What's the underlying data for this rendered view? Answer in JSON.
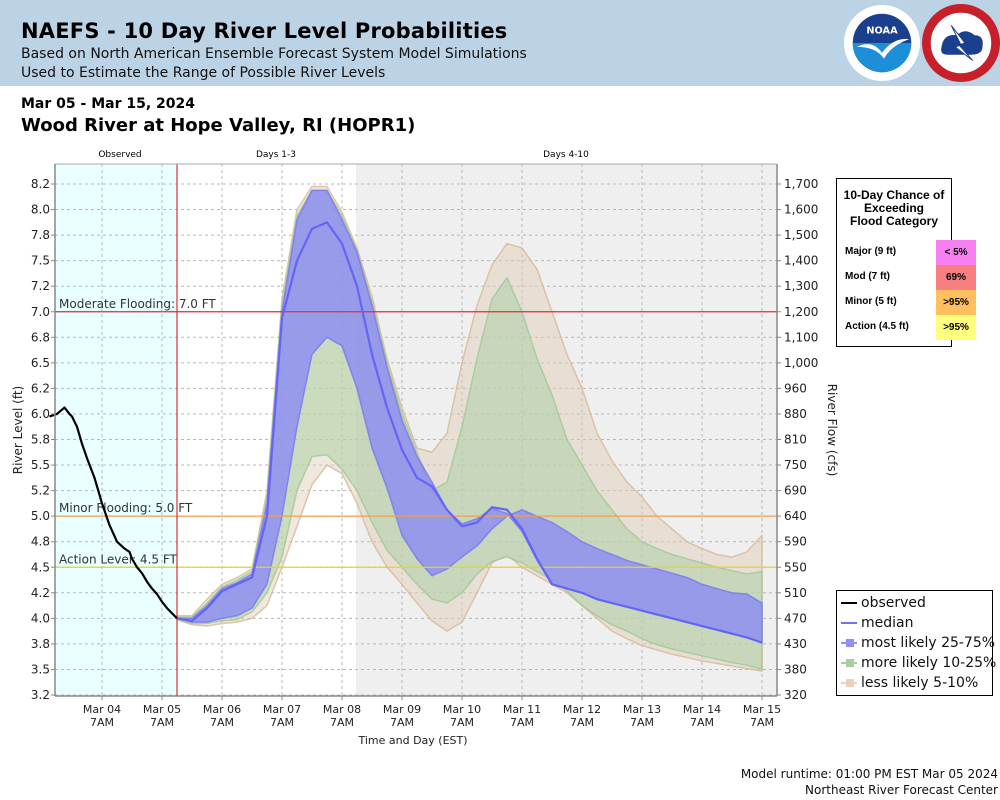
{
  "header": {
    "title": "NAEFS - 10 Day River Level Probabilities",
    "subtitle1": "Based on North American Ensemble Forecast System Model Simulations",
    "subtitle2": "Used to Estimate the Range of Possible River Levels",
    "logos": [
      "noaa-logo",
      "nws-logo"
    ],
    "noaa_text": "NOAA"
  },
  "date_range": "Mar 05 - Mar 15, 2024",
  "station": "Wood River at Hope Valley, RI (HOPR1)",
  "flood_table": {
    "title_lines": [
      "10-Day Chance of",
      "Exceeding",
      "Flood Category"
    ],
    "rows": [
      {
        "label": "Major (9 ft)",
        "value": "< 5%",
        "color": "#f77ff2"
      },
      {
        "label": "Mod (7 ft)",
        "value": "69%",
        "color": "#f77f7f"
      },
      {
        "label": "Minor (5 ft)",
        "value": ">95%",
        "color": "#ffbf5f"
      },
      {
        "label": "Action (4.5 ft)",
        "value": ">95%",
        "color": "#ffff7f"
      }
    ]
  },
  "legend": [
    {
      "label": "observed",
      "kind": "line",
      "color": "#000000"
    },
    {
      "label": "median",
      "kind": "line",
      "color": "#6f6ff7"
    },
    {
      "label": "most likely 25-75%",
      "kind": "band",
      "color": "#8f8ff7"
    },
    {
      "label": "more likely 10-25%",
      "kind": "band",
      "color": "#a9cfa0"
    },
    {
      "label": "less likely 5-10%",
      "kind": "band",
      "color": "#e8d2b8"
    }
  ],
  "footer": {
    "runtime": "Model runtime: 01:00 PM EST Mar 05 2024",
    "center": "Northeast River Forecast Center"
  },
  "chart_data": {
    "type": "area",
    "title": "Wood River at Hope Valley, RI (HOPR1)",
    "xlabel": "Time and Day (EST)",
    "ylabel": "River Level (ft)",
    "ylabel_right": "River Flow (cfs)",
    "grid": true,
    "legend_position": "bottom-right",
    "period_labels": [
      "Observed",
      "Days 1-3",
      "Days 4-10"
    ],
    "x_ticks": [
      {
        "day": "Mar 04",
        "time": "7AM"
      },
      {
        "day": "Mar 05",
        "time": "7AM"
      },
      {
        "day": "Mar 06",
        "time": "7AM"
      },
      {
        "day": "Mar 07",
        "time": "7AM"
      },
      {
        "day": "Mar 08",
        "time": "7AM"
      },
      {
        "day": "Mar 09",
        "time": "7AM"
      },
      {
        "day": "Mar 10",
        "time": "7AM"
      },
      {
        "day": "Mar 11",
        "time": "7AM"
      },
      {
        "day": "Mar 12",
        "time": "7AM"
      },
      {
        "day": "Mar 13",
        "time": "7AM"
      },
      {
        "day": "Mar 14",
        "time": "7AM"
      },
      {
        "day": "Mar 15",
        "time": "7AM"
      }
    ],
    "y_ticks_left": [
      "8.2",
      "8.0",
      "7.8",
      "7.5",
      "7.2",
      "7.0",
      "6.8",
      "6.5",
      "6.2",
      "6.0",
      "5.8",
      "5.5",
      "5.2",
      "5.0",
      "4.8",
      "4.5",
      "4.2",
      "4.0",
      "3.8",
      "3.5",
      "3.2"
    ],
    "y_ticks_right": [
      "1,700",
      "1,600",
      "1,500",
      "1,400",
      "1,300",
      "1,200",
      "1,100",
      "1,000",
      "960",
      "880",
      "810",
      "750",
      "690",
      "640",
      "590",
      "550",
      "510",
      "470",
      "430",
      "380",
      "320"
    ],
    "thresholds": [
      {
        "label": "Moderate Flooding: 7.0 FT",
        "stage": 7.0,
        "color": "#e03030"
      },
      {
        "label": "Minor Flooding: 5.0 FT",
        "stage": 5.0,
        "color": "#f0a050"
      },
      {
        "label": "Action Level: 4.5 FT",
        "stage": 4.5,
        "color": "#f0d020"
      }
    ],
    "forecast_issue_hours": 30,
    "x_hours_note": "hours after Mar 04 7AM",
    "observed": {
      "hours": [
        -21,
        -18,
        -15,
        -13,
        -12,
        -10,
        -8,
        -6,
        -3,
        0,
        3,
        6,
        9,
        11,
        12,
        14,
        16,
        18,
        20,
        22,
        24,
        26,
        28,
        30
      ],
      "stage": [
        5.98,
        6.0,
        6.05,
        6.0,
        5.98,
        5.9,
        5.75,
        5.58,
        5.35,
        5.1,
        4.93,
        4.8,
        4.72,
        4.68,
        4.6,
        4.5,
        4.43,
        4.33,
        4.25,
        4.19,
        4.13,
        4.08,
        4.04,
        4.0
      ]
    },
    "forecast_hours": [
      30,
      36,
      42,
      48,
      54,
      60,
      66,
      72,
      78,
      84,
      90,
      96,
      102,
      108,
      114,
      120,
      126,
      132,
      138,
      144,
      150,
      156,
      162,
      168,
      174,
      180,
      186,
      192,
      198,
      204,
      210,
      216,
      222,
      228,
      234,
      240,
      246,
      252,
      258,
      264
    ],
    "series": [
      {
        "name": "median",
        "stage": [
          4.0,
          3.98,
          4.08,
          4.22,
          4.3,
          4.38,
          5.0,
          6.95,
          7.5,
          7.85,
          7.9,
          7.7,
          7.2,
          6.6,
          6.05,
          5.68,
          5.35,
          5.25,
          5.05,
          4.92,
          4.95,
          5.07,
          5.05,
          4.9,
          4.6,
          4.3,
          4.25,
          4.2,
          4.15,
          4.12,
          4.09,
          4.06,
          4.03,
          4.0,
          3.97,
          3.94,
          3.91,
          3.88,
          3.85,
          3.81
        ]
      },
      {
        "name": "25-75% upper",
        "stage": [
          4.0,
          4.0,
          4.1,
          4.25,
          4.32,
          4.42,
          5.1,
          7.0,
          7.92,
          8.15,
          8.15,
          7.92,
          7.6,
          7.05,
          6.45,
          5.95,
          5.6,
          5.3,
          5.05,
          4.94,
          4.98,
          5.06,
          5.02,
          4.88,
          4.58,
          4.3,
          4.25,
          4.2,
          4.15,
          4.12,
          4.09,
          4.06,
          4.03,
          4.0,
          3.97,
          3.94,
          3.91,
          3.88,
          3.85,
          3.81
        ]
      },
      {
        "name": "25-75% lower",
        "stage": [
          4.0,
          3.97,
          3.97,
          4.0,
          4.02,
          4.08,
          4.3,
          5.0,
          5.9,
          6.6,
          6.8,
          6.7,
          6.2,
          5.7,
          5.23,
          4.85,
          4.6,
          4.4,
          4.48,
          4.62,
          4.75,
          4.9,
          5.0,
          5.05,
          5.0,
          4.95,
          4.88,
          4.8,
          4.72,
          4.65,
          4.58,
          4.53,
          4.48,
          4.43,
          4.38,
          4.3,
          4.25,
          4.2,
          4.19,
          4.12
        ]
      },
      {
        "name": "10-25% upper",
        "stage": [
          4.01,
          4.01,
          4.12,
          4.27,
          4.35,
          4.45,
          5.15,
          7.05,
          7.95,
          8.15,
          8.15,
          7.95,
          7.62,
          7.08,
          6.5,
          6.0,
          5.65,
          5.2,
          5.3,
          5.9,
          6.55,
          7.1,
          7.3,
          7.0,
          6.55,
          6.15,
          5.8,
          5.5,
          5.2,
          5.05,
          4.9,
          4.8,
          4.72,
          4.65,
          4.6,
          4.55,
          4.5,
          4.46,
          4.42,
          4.45
        ]
      },
      {
        "name": "10-25% lower",
        "stage": [
          3.99,
          3.96,
          3.96,
          3.98,
          3.99,
          4.05,
          4.2,
          4.62,
          5.2,
          5.6,
          5.62,
          5.45,
          5.2,
          4.95,
          4.7,
          4.5,
          4.3,
          4.15,
          4.12,
          4.2,
          4.42,
          4.57,
          4.62,
          4.55,
          4.45,
          4.35,
          4.22,
          4.1,
          4.02,
          3.95,
          3.9,
          3.84,
          3.79,
          3.74,
          3.7,
          3.66,
          3.62,
          3.58,
          3.55,
          3.5
        ]
      },
      {
        "name": "5-10% upper",
        "stage": [
          4.02,
          4.02,
          4.15,
          4.3,
          4.38,
          4.48,
          5.2,
          7.1,
          8.0,
          8.18,
          8.18,
          7.98,
          7.65,
          7.12,
          6.55,
          6.05,
          5.7,
          5.65,
          5.85,
          6.5,
          7.05,
          7.45,
          7.7,
          7.65,
          7.4,
          7.0,
          6.6,
          6.2,
          5.85,
          5.55,
          5.3,
          5.15,
          5.0,
          4.9,
          4.8,
          4.72,
          4.65,
          4.62,
          4.68,
          4.85
        ]
      },
      {
        "name": "5-10% lower",
        "stage": [
          3.99,
          3.95,
          3.94,
          3.96,
          3.97,
          4.0,
          4.1,
          4.5,
          4.92,
          5.27,
          5.5,
          5.4,
          5.1,
          4.8,
          4.5,
          4.3,
          4.12,
          3.98,
          3.9,
          3.97,
          4.2,
          4.55,
          4.65,
          4.5,
          4.4,
          4.3,
          4.2,
          4.1,
          4.0,
          3.9,
          3.84,
          3.78,
          3.73,
          3.68,
          3.64,
          3.6,
          3.57,
          3.54,
          3.51,
          3.48
        ]
      }
    ]
  }
}
